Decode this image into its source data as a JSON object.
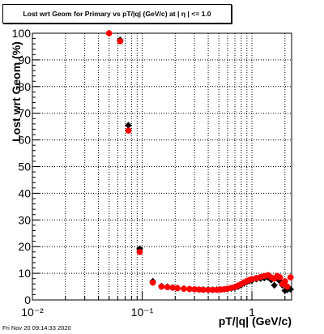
{
  "title": "Lost wrt Geom for Primary vs pT/|q| (GeV/c) at |  η | <= 1.0",
  "footer": "Fri Nov 20 09:14:33 2020",
  "chart_data": {
    "type": "scatter",
    "title": "Lost wrt Geom for Primary vs pT/|q| (GeV/c) at |  η | <= 1.0",
    "xlabel": "pT/|q| (GeV/c)",
    "ylabel": "Lost wrt Geom (%)",
    "xscale": "log",
    "xlim": [
      0.01,
      2.3
    ],
    "ylim": [
      0,
      100
    ],
    "grid": true,
    "x_tick_labels": [
      "10⁻²",
      "10⁻¹",
      "1"
    ],
    "x_ticks": [
      0.01,
      0.1,
      1
    ],
    "y_ticks": [
      0,
      10,
      20,
      30,
      40,
      50,
      60,
      70,
      80,
      90,
      100
    ],
    "series": [
      {
        "color": "#000000",
        "marker": "diamond",
        "points": [
          [
            0.05,
            100
          ],
          [
            0.063,
            97.5
          ],
          [
            0.075,
            65.5
          ],
          [
            0.095,
            19.2
          ],
          [
            0.125,
            7.0
          ],
          [
            0.15,
            5.2
          ],
          [
            0.17,
            5.0
          ],
          [
            0.19,
            4.7
          ],
          [
            0.21,
            4.5
          ],
          [
            0.24,
            4.3
          ],
          [
            0.27,
            4.1
          ],
          [
            0.3,
            4.0
          ],
          [
            0.33,
            3.9
          ],
          [
            0.36,
            3.9
          ],
          [
            0.4,
            3.8
          ],
          [
            0.44,
            3.8
          ],
          [
            0.48,
            3.9
          ],
          [
            0.52,
            3.9
          ],
          [
            0.56,
            4.0
          ],
          [
            0.6,
            4.1
          ],
          [
            0.65,
            4.3
          ],
          [
            0.7,
            4.6
          ],
          [
            0.75,
            5.0
          ],
          [
            0.8,
            5.6
          ],
          [
            0.85,
            6.2
          ],
          [
            0.9,
            6.8
          ],
          [
            0.95,
            7.1
          ],
          [
            1.0,
            7.3
          ],
          [
            1.1,
            7.8
          ],
          [
            1.2,
            8.0
          ],
          [
            1.3,
            8.2
          ],
          [
            1.4,
            8.5
          ],
          [
            1.5,
            7.5
          ],
          [
            1.6,
            5.5
          ],
          [
            1.7,
            8.0
          ],
          [
            1.8,
            7.0
          ],
          [
            1.9,
            5.5
          ],
          [
            2.0,
            3.5
          ],
          [
            2.1,
            3.8
          ],
          [
            2.25,
            4.0
          ]
        ]
      },
      {
        "color": "#ff0000",
        "marker": "circle",
        "points": [
          [
            0.05,
            100
          ],
          [
            0.063,
            97.0
          ],
          [
            0.075,
            63.5
          ],
          [
            0.095,
            18.0
          ],
          [
            0.125,
            6.5
          ],
          [
            0.15,
            5.0
          ],
          [
            0.17,
            4.8
          ],
          [
            0.19,
            4.6
          ],
          [
            0.21,
            4.4
          ],
          [
            0.24,
            4.2
          ],
          [
            0.27,
            4.1
          ],
          [
            0.3,
            4.0
          ],
          [
            0.33,
            3.9
          ],
          [
            0.36,
            3.8
          ],
          [
            0.4,
            3.8
          ],
          [
            0.44,
            3.8
          ],
          [
            0.48,
            3.8
          ],
          [
            0.52,
            3.9
          ],
          [
            0.56,
            4.0
          ],
          [
            0.6,
            4.2
          ],
          [
            0.65,
            4.5
          ],
          [
            0.7,
            4.9
          ],
          [
            0.75,
            5.4
          ],
          [
            0.8,
            6.0
          ],
          [
            0.85,
            6.6
          ],
          [
            0.9,
            7.1
          ],
          [
            0.95,
            7.5
          ],
          [
            1.0,
            7.8
          ],
          [
            1.1,
            8.2
          ],
          [
            1.2,
            8.6
          ],
          [
            1.3,
            9.0
          ],
          [
            1.4,
            9.3
          ],
          [
            1.5,
            8.5
          ],
          [
            1.6,
            8.0
          ],
          [
            1.7,
            9.0
          ],
          [
            1.8,
            8.5
          ],
          [
            1.9,
            6.0
          ],
          [
            2.0,
            7.0
          ],
          [
            2.1,
            5.0
          ],
          [
            2.25,
            8.5
          ]
        ]
      }
    ]
  }
}
